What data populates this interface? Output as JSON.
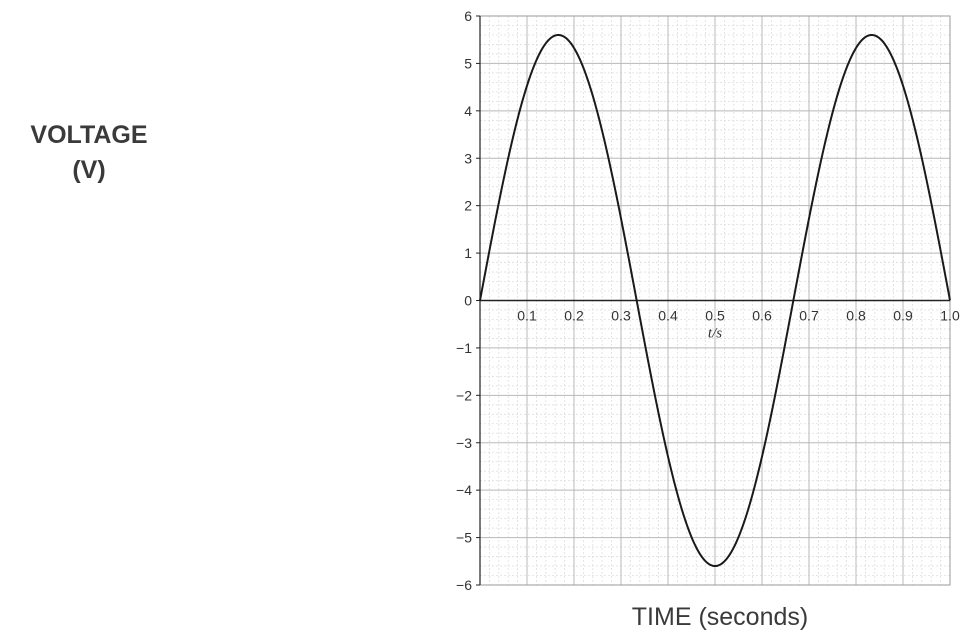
{
  "chart_data": {
    "type": "line",
    "title": "",
    "ylabel_line1": "VOLTAGE",
    "ylabel_line2": "(V)",
    "xlabel": "TIME (seconds)",
    "axis_unit_label": "t/s",
    "xlim": [
      0,
      1.0
    ],
    "ylim": [
      -6,
      6
    ],
    "x_ticks": [
      "0.1",
      "0.2",
      "0.3",
      "0.4",
      "0.5",
      "0.6",
      "0.7",
      "0.8",
      "0.9",
      "1.0"
    ],
    "y_ticks": [
      "6",
      "5",
      "4",
      "3",
      "2",
      "1",
      "0",
      "−1",
      "−2",
      "−3",
      "−4",
      "−5",
      "−6"
    ],
    "grid": true,
    "series": [
      {
        "amplitude": 5.6,
        "period": 0.6667,
        "x": [
          0,
          0.05,
          0.1,
          0.1667,
          0.25,
          0.3333,
          0.4,
          0.5,
          0.6,
          0.6667,
          0.75,
          0.8333,
          0.9,
          1.0
        ],
        "y": [
          0,
          2.54,
          4.53,
          5.6,
          3.96,
          0,
          -3.29,
          -5.6,
          -3.29,
          0,
          3.96,
          5.6,
          4.53,
          0
        ]
      }
    ],
    "colors": {
      "line": "#1a1a1a",
      "grid_major": "#b8b8b8",
      "grid_minor": "#dedede",
      "axis": "#222222"
    }
  }
}
